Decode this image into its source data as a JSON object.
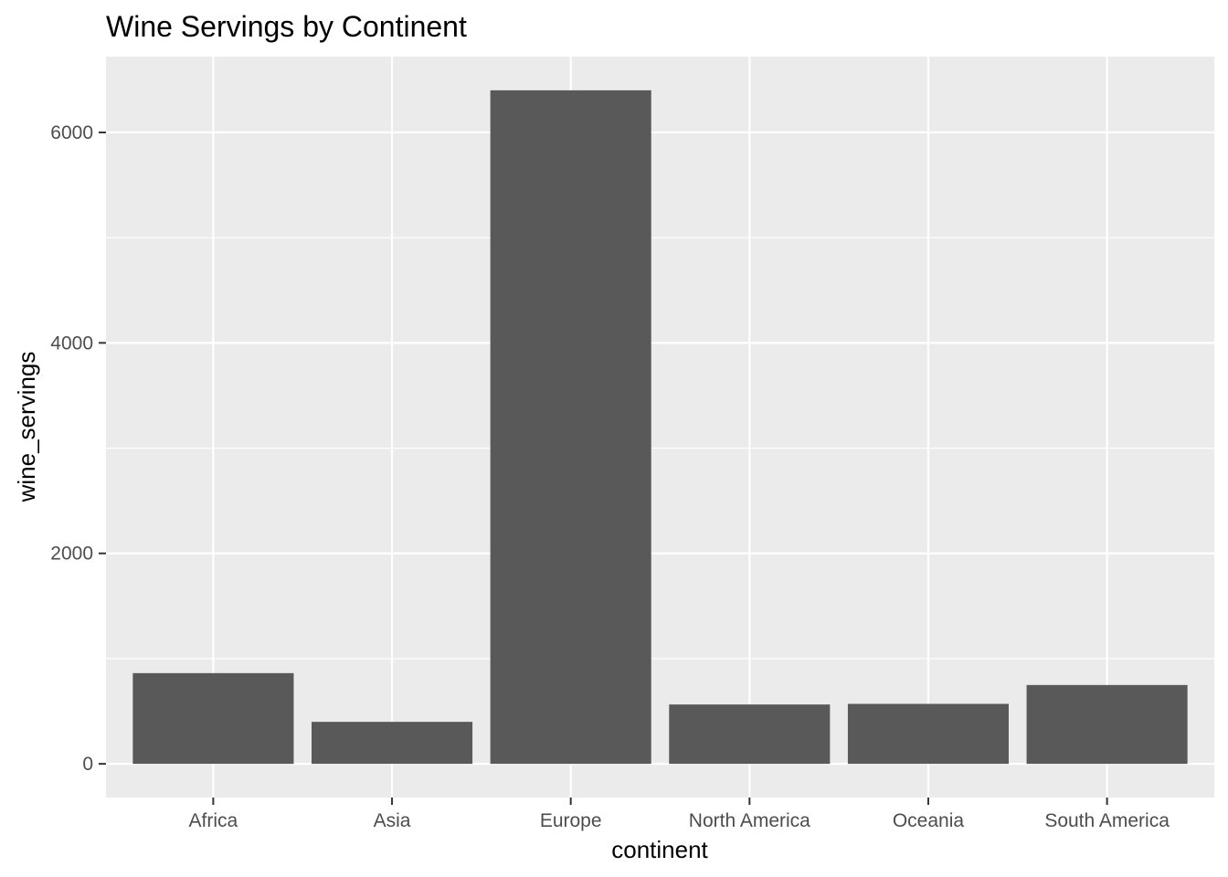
{
  "chart_data": {
    "type": "bar",
    "title": "Wine Servings by Continent",
    "xlabel": "continent",
    "ylabel": "wine_servings",
    "categories": [
      "Africa",
      "Asia",
      "Europe",
      "North America",
      "Oceania",
      "South America"
    ],
    "values": [
      862,
      399,
      6400,
      564,
      570,
      749
    ],
    "ylim": [
      -320,
      6720
    ],
    "yticks": [
      0,
      2000,
      4000,
      6000
    ],
    "ytick_labels": [
      "0",
      "2000",
      "4000",
      "6000"
    ],
    "grid": true,
    "legend": "none",
    "colors": {
      "bar": "#595959",
      "panel": "#ebebeb",
      "grid": "#ffffff",
      "tick_text": "#4d4d4d",
      "tick_mark": "#333333"
    }
  }
}
